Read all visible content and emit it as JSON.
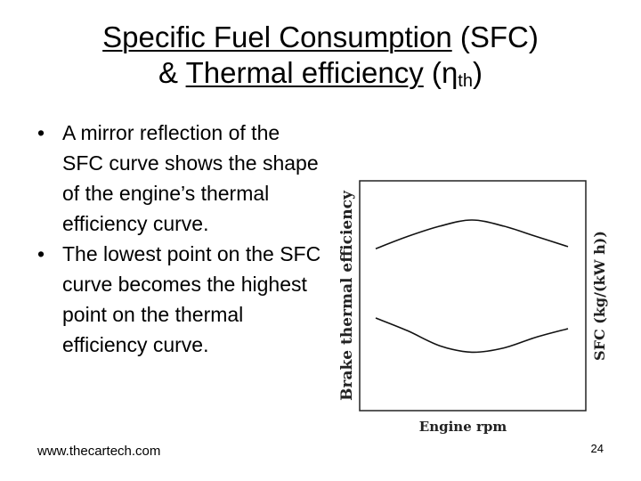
{
  "slide": {
    "title_line1_underlined": "Specific Fuel Consumption",
    "title_line1_rest": " (SFC)",
    "title_line2_prefix": "& ",
    "title_line2_underlined": "Thermal efficiency",
    "title_line2_paren_open": " (",
    "title_eta": "η",
    "title_sub": "th",
    "title_paren_close": ")"
  },
  "bullets": [
    "A mirror reflection of the SFC curve shows the shape of the engine’s thermal efficiency curve.",
    "The lowest point on the SFC curve becomes the highest point on the thermal efficiency curve."
  ],
  "bullet_symbol": "•",
  "footer": {
    "url": "www.thecartech.com",
    "page_number": "24"
  },
  "chart_data": {
    "type": "line",
    "xlabel": "Engine rpm",
    "ylabel_left": "Brake thermal efficiency",
    "ylabel_right": "SFC (kg/(kW h))",
    "grid": false,
    "series": [
      {
        "name": "",
        "shape": "peak",
        "values": [
          0.3,
          0.6,
          0.85,
          1.0,
          0.85,
          0.6,
          0.35
        ]
      },
      {
        "name": "",
        "shape": "trough",
        "values": [
          1.0,
          0.7,
          0.35,
          0.2,
          0.3,
          0.55,
          0.75
        ]
      }
    ]
  }
}
